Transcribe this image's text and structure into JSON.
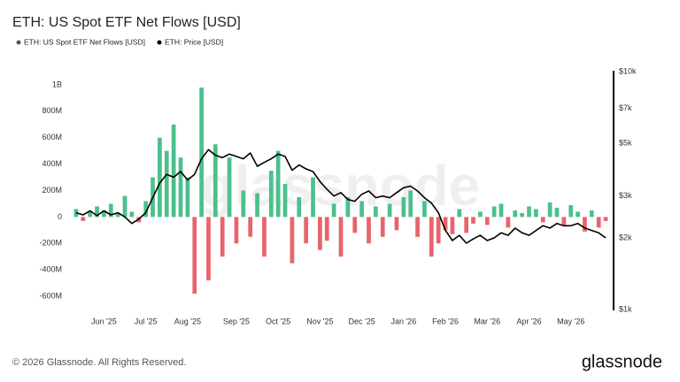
{
  "chart_data": {
    "type": "bar-line",
    "title": "ETH: US Spot ETF Net Flows [USD]",
    "categories": [
      null,
      null,
      null,
      null,
      "Jun '25",
      null,
      null,
      null,
      null,
      null,
      "Jul '25",
      null,
      null,
      null,
      null,
      null,
      "Aug '25",
      null,
      null,
      null,
      null,
      null,
      null,
      "Sep '25",
      null,
      null,
      null,
      null,
      null,
      "Oct '25",
      null,
      null,
      null,
      null,
      null,
      "Nov '25",
      null,
      null,
      null,
      null,
      null,
      "Dec '25",
      null,
      null,
      null,
      null,
      null,
      "Jan '26",
      null,
      null,
      null,
      null,
      null,
      "Feb '26",
      null,
      null,
      null,
      null,
      null,
      "Mar '26",
      null,
      null,
      null,
      null,
      null,
      "Apr '26",
      null,
      null,
      null,
      null,
      null,
      "May '26",
      null,
      null,
      null,
      null,
      null
    ],
    "series": [
      {
        "name": "ETH: US Spot ETF Net Flows [USD]",
        "color": "#555555",
        "positive_color": "#4cc08c",
        "negative_color": "#e8646c",
        "values": [
          60000000,
          -30000000,
          40000000,
          80000000,
          50000000,
          100000000,
          30000000,
          160000000,
          40000000,
          -40000000,
          120000000,
          300000000,
          600000000,
          500000000,
          700000000,
          450000000,
          300000000,
          -580000000,
          980000000,
          -480000000,
          550000000,
          -300000000,
          450000000,
          -200000000,
          200000000,
          -150000000,
          180000000,
          -300000000,
          350000000,
          500000000,
          250000000,
          -350000000,
          150000000,
          -200000000,
          300000000,
          -250000000,
          -180000000,
          100000000,
          -300000000,
          150000000,
          -120000000,
          120000000,
          -200000000,
          80000000,
          -150000000,
          100000000,
          -100000000,
          150000000,
          200000000,
          -150000000,
          120000000,
          -300000000,
          -200000000,
          -100000000,
          -130000000,
          60000000,
          -120000000,
          -50000000,
          40000000,
          -60000000,
          80000000,
          100000000,
          -80000000,
          50000000,
          30000000,
          80000000,
          60000000,
          -40000000,
          110000000,
          70000000,
          -60000000,
          90000000,
          40000000,
          -110000000,
          50000000,
          -80000000,
          -30000000
        ]
      },
      {
        "name": "ETH: Price [USD]",
        "color": "#000000",
        "axis": "y2",
        "values": [
          2550,
          2500,
          2600,
          2480,
          2600,
          2500,
          2550,
          2450,
          2300,
          2400,
          2550,
          2950,
          3400,
          3700,
          3600,
          3800,
          3500,
          3700,
          4300,
          4700,
          4450,
          4350,
          4500,
          4400,
          4300,
          4550,
          4000,
          4150,
          4300,
          4500,
          4400,
          3850,
          4050,
          3900,
          3800,
          3450,
          3200,
          3000,
          3100,
          2900,
          2850,
          3050,
          3150,
          2950,
          3000,
          2950,
          3100,
          3250,
          3300,
          3150,
          2950,
          2800,
          2550,
          2150,
          1950,
          2050,
          1900,
          1980,
          2050,
          1950,
          2000,
          2100,
          2050,
          2200,
          2100,
          2050,
          2150,
          2250,
          2200,
          2300,
          2250,
          2250,
          2300,
          2200,
          2150,
          2100,
          2000
        ]
      }
    ],
    "ylim": [
      -700000000,
      1100000000
    ],
    "yticks": [
      {
        "value": -600000000,
        "label": "-600M"
      },
      {
        "value": -400000000,
        "label": "-400M"
      },
      {
        "value": -200000000,
        "label": "-200M"
      },
      0,
      {
        "value": 200000000,
        "label": "200M"
      },
      {
        "value": 400000000,
        "label": "400M"
      },
      {
        "value": 600000000,
        "label": "600M"
      },
      {
        "value": 800000000,
        "label": "800M"
      },
      {
        "value": 1000000000,
        "label": "1B"
      }
    ],
    "y2lim": [
      1000,
      10000
    ],
    "y2log": true,
    "y2ticks": [
      {
        "value": 1000,
        "label": "$1k"
      },
      {
        "value": 2000,
        "label": "$2k"
      },
      {
        "value": 3000,
        "label": "$3k"
      },
      {
        "value": 5000,
        "label": "$5k"
      },
      {
        "value": 7000,
        "label": "$7k"
      },
      {
        "value": 10000,
        "label": "$10k"
      }
    ],
    "grid": false
  },
  "footer": {
    "copyright": "© 2026 Glassnode. All Rights Reserved.",
    "logo": "glassnode"
  }
}
